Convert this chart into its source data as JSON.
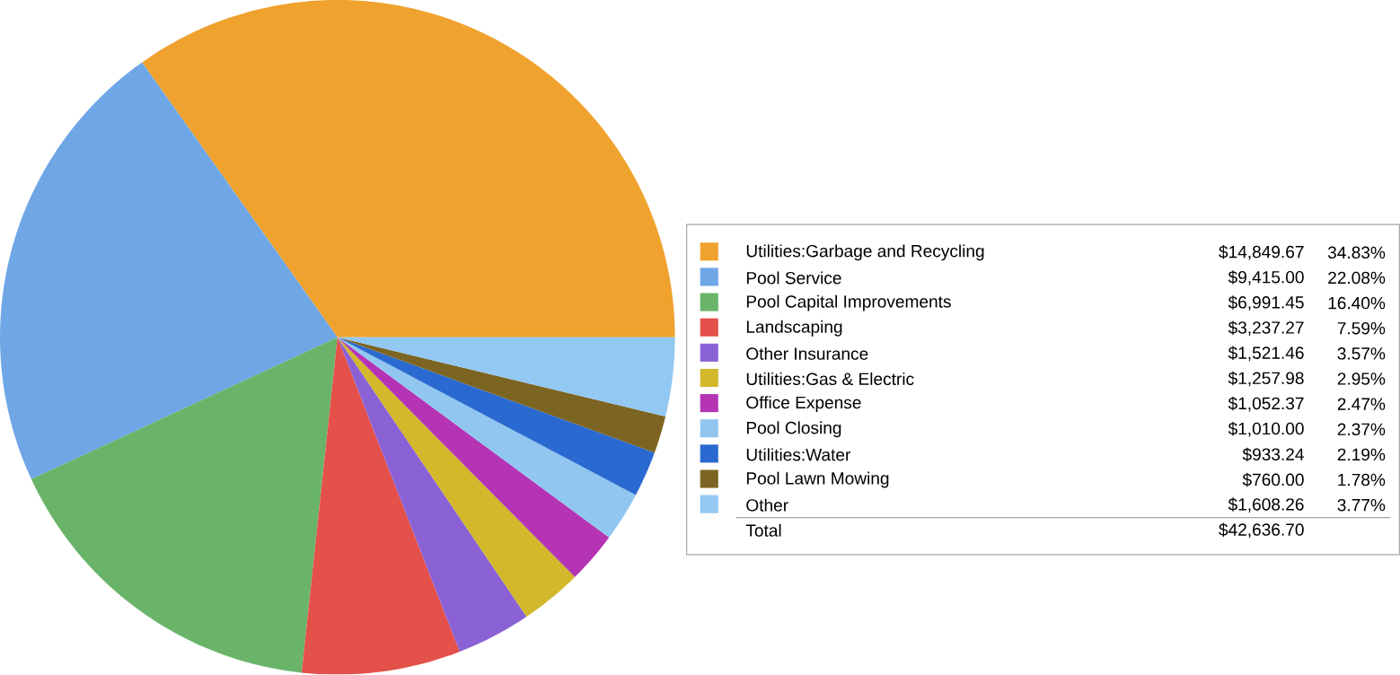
{
  "chart_data": {
    "type": "pie",
    "categories": [
      "Utilities:Garbage and Recycling",
      "Pool Service",
      "Pool Capital Improvements",
      "Landscaping",
      "Other Insurance",
      "Utilities:Gas & Electric",
      "Office Expense",
      "Pool Closing",
      "Utilities:Water",
      "Pool Lawn Mowing",
      "Other"
    ],
    "values": [
      14849.67,
      9415.0,
      6991.45,
      3237.27,
      1521.46,
      1257.98,
      1052.37,
      1010.0,
      933.24,
      760.0,
      1608.26
    ],
    "value_labels": [
      "$14,849.67",
      "$9,415.00",
      "$6,991.45",
      "$3,237.27",
      "$1,521.46",
      "$1,257.98",
      "$1,052.37",
      "$1,010.00",
      "$933.24",
      "$760.00",
      "$1,608.26"
    ],
    "colors": [
      "#f0a22e",
      "#6fa6e6",
      "#6ab46a",
      "#e4504a",
      "#8a62d6",
      "#d2b82a",
      "#b434b4",
      "#90c6f0",
      "#2a6ad0",
      "#7c6422",
      "#92c8f2"
    ],
    "annotations": [
      "Total",
      "$42,636.70",
      "34.83%",
      "22.08%",
      "16.40%",
      "7.59%",
      "3.57%",
      "2.95%",
      "2.47%",
      "2.37%",
      "2.19%",
      "1.78%",
      "3.77%"
    ],
    "legend": "right"
  }
}
